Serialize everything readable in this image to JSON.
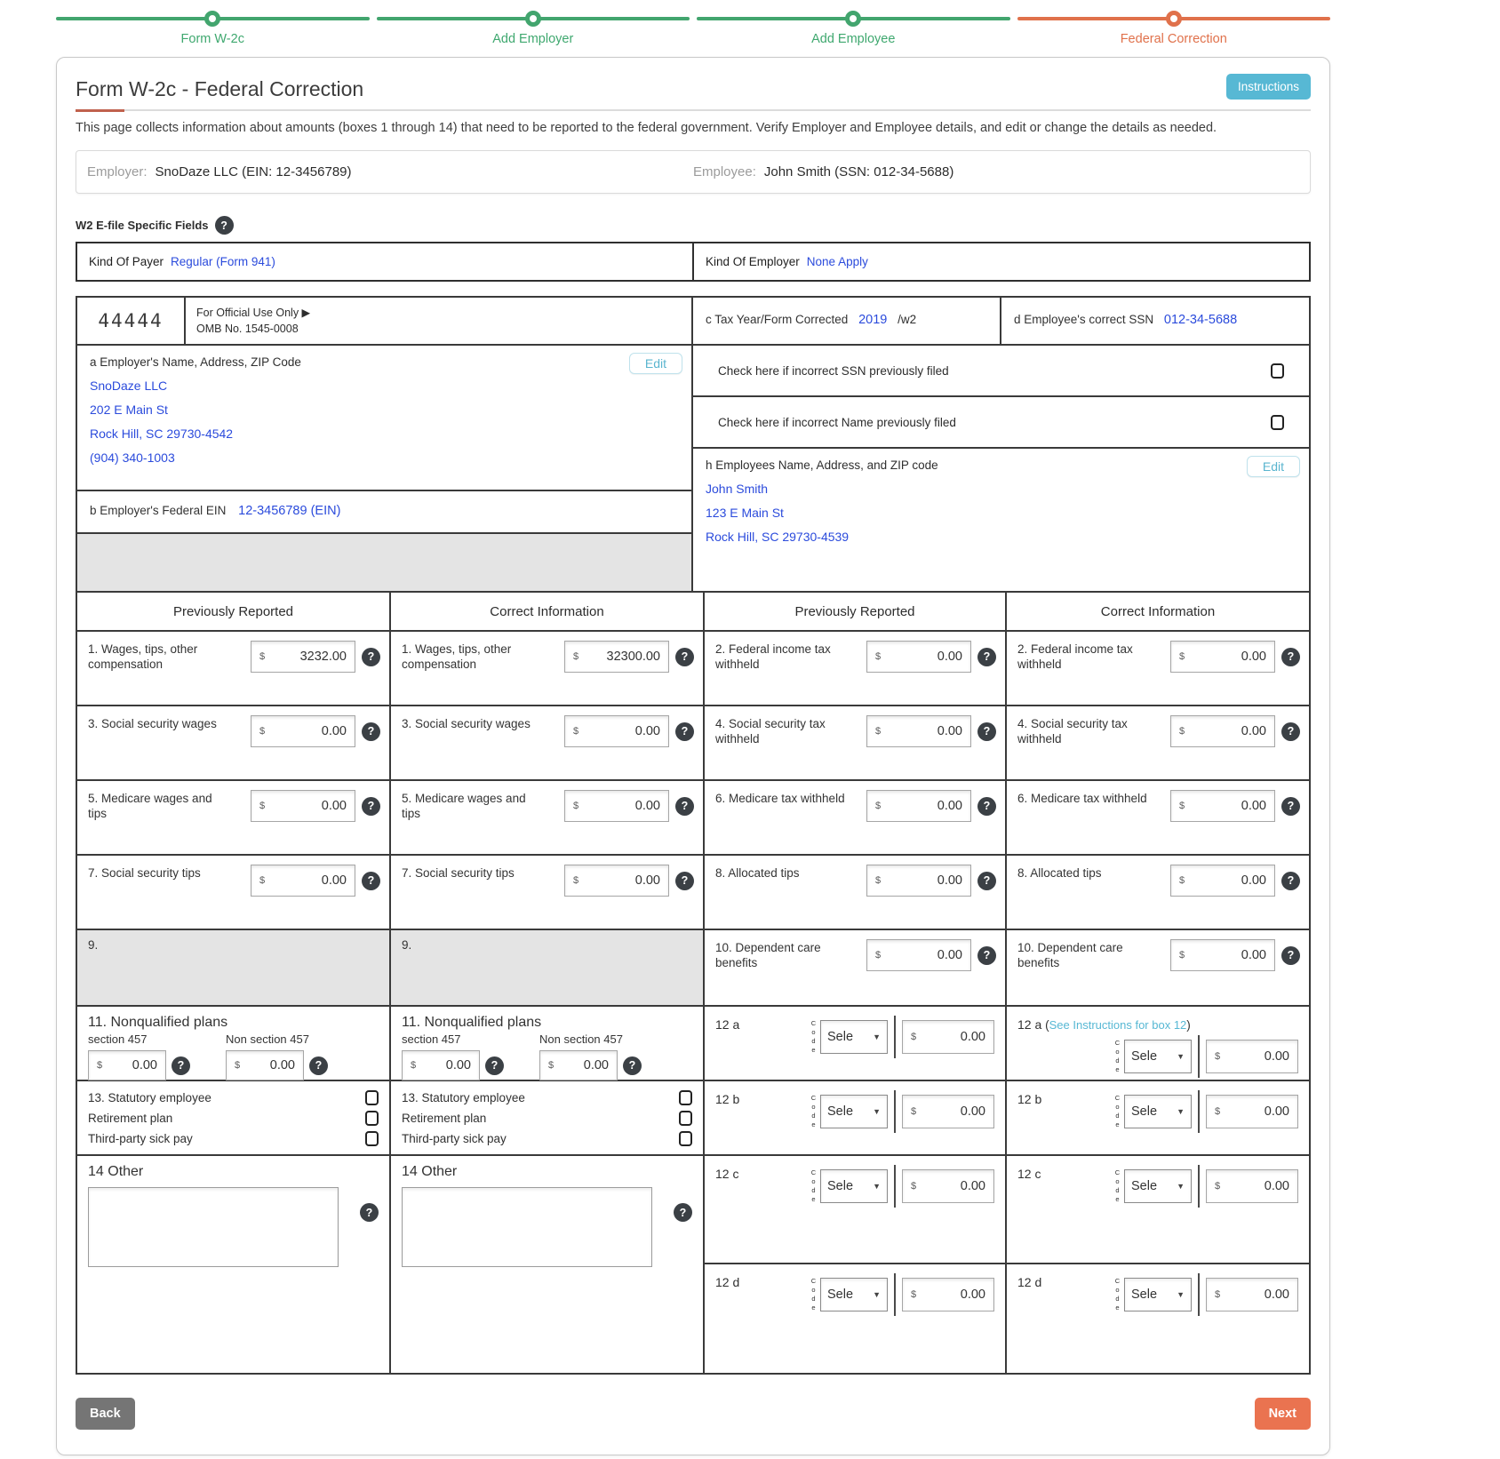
{
  "colors": {
    "green": "#42a56e",
    "orange": "#e0714b",
    "blue": "#2b4bdc",
    "teal": "#57b8d4",
    "gray_cell": "#e4e4e4"
  },
  "stepper": {
    "steps": [
      {
        "label": "Form W-2c",
        "state": "done"
      },
      {
        "label": "Add Employer",
        "state": "done"
      },
      {
        "label": "Add Employee",
        "state": "done"
      },
      {
        "label": "Federal Correction",
        "state": "current"
      }
    ]
  },
  "header": {
    "title": "Form W-2c - Federal Correction",
    "instructions_label": "Instructions",
    "description": "This page collects information about amounts (boxes 1 through 14) that need to be reported to the federal government. Verify Employer and Employee details, and edit or change the details as needed."
  },
  "info_bar": {
    "employer_label": "Employer:",
    "employer_value": "SnoDaze LLC (EIN: 12-3456789)",
    "employee_label": "Employee:",
    "employee_value": "John Smith (SSN: 012-34-5688)"
  },
  "efile": {
    "label": "W2 E-file Specific Fields",
    "kind_of_payer_label": "Kind Of Payer",
    "kind_of_payer_value": "Regular (Form 941)",
    "kind_of_employer_label": "Kind Of Employer",
    "kind_of_employer_value": "None Apply"
  },
  "form_head": {
    "code": "44444",
    "official_use": "For Official Use Only ▶",
    "omb": "OMB No. 1545-0008",
    "a_label": "a Employer's Name, Address, ZIP Code",
    "edit_label": "Edit",
    "employer_lines": [
      "SnoDaze LLC",
      "202 E Main St",
      "Rock Hill, SC 29730-4542",
      "(904) 340-1003"
    ],
    "b_label": "b  Employer's Federal EIN",
    "b_value": "12-3456789 (EIN)",
    "c_label": "c Tax Year/Form Corrected",
    "c_value": "2019",
    "c_suffix": "/w2",
    "d_label": "d Employee's correct SSN",
    "d_value": "012-34-5688",
    "check_ssn_label": "Check here if incorrect SSN previously filed",
    "check_name_label": "Check here if incorrect Name previously filed",
    "h_label": "h Employees Name, Address, and ZIP code",
    "employee_lines": [
      "John Smith",
      "123 E Main St",
      "Rock Hill, SC 29730-4539"
    ]
  },
  "grid": {
    "headers": [
      "Previously Reported",
      "Correct Information",
      "Previously Reported",
      "Correct Information"
    ],
    "currency": "$",
    "help_glyph": "?",
    "box1": {
      "label": "1. Wages, tips, other compensation",
      "prev": "3232.00",
      "corr": "32300.00"
    },
    "box2": {
      "label": "2. Federal income tax withheld",
      "prev": "0.00",
      "corr": "0.00"
    },
    "box3": {
      "label": "3. Social security wages",
      "prev": "0.00",
      "corr": "0.00"
    },
    "box4": {
      "label": "4. Social security tax withheld",
      "prev": "0.00",
      "corr": "0.00"
    },
    "box5": {
      "label": "5. Medicare wages and tips",
      "prev": "0.00",
      "corr": "0.00"
    },
    "box6": {
      "label": "6. Medicare tax withheld",
      "prev": "0.00",
      "corr": "0.00"
    },
    "box7": {
      "label": "7. Social security tips",
      "prev": "0.00",
      "corr": "0.00"
    },
    "box8": {
      "label": "8. Allocated tips",
      "prev": "0.00",
      "corr": "0.00"
    },
    "box9": {
      "label": "9."
    },
    "box10": {
      "label": "10. Dependent care benefits",
      "prev": "0.00",
      "corr": "0.00"
    },
    "box11": {
      "label": "11. Nonqualified plans",
      "sub_457": "section 457",
      "sub_non457": "Non section 457",
      "prev_457": "0.00",
      "prev_non457": "0.00",
      "corr_457": "0.00",
      "corr_non457": "0.00"
    },
    "box12": {
      "code_label": "Code",
      "select_value": "Sele",
      "select_arrow": "▼",
      "a": {
        "label": "12 a",
        "paren_open": "(",
        "link": "See Instructions for box 12",
        "paren_close": ")",
        "prev": "0.00",
        "corr": "0.00"
      },
      "b": {
        "label": "12 b",
        "prev": "0.00",
        "corr": "0.00"
      },
      "c": {
        "label": "12 c",
        "prev": "0.00",
        "corr": "0.00"
      },
      "d": {
        "label": "12 d",
        "prev": "0.00",
        "corr": "0.00"
      }
    },
    "box13": {
      "line1": "13. Statutory employee",
      "line2": "Retirement plan",
      "line3": "Third-party sick pay"
    },
    "box14": {
      "label": "14 Other"
    }
  },
  "footer": {
    "back_label": "Back",
    "next_label": "Next"
  }
}
